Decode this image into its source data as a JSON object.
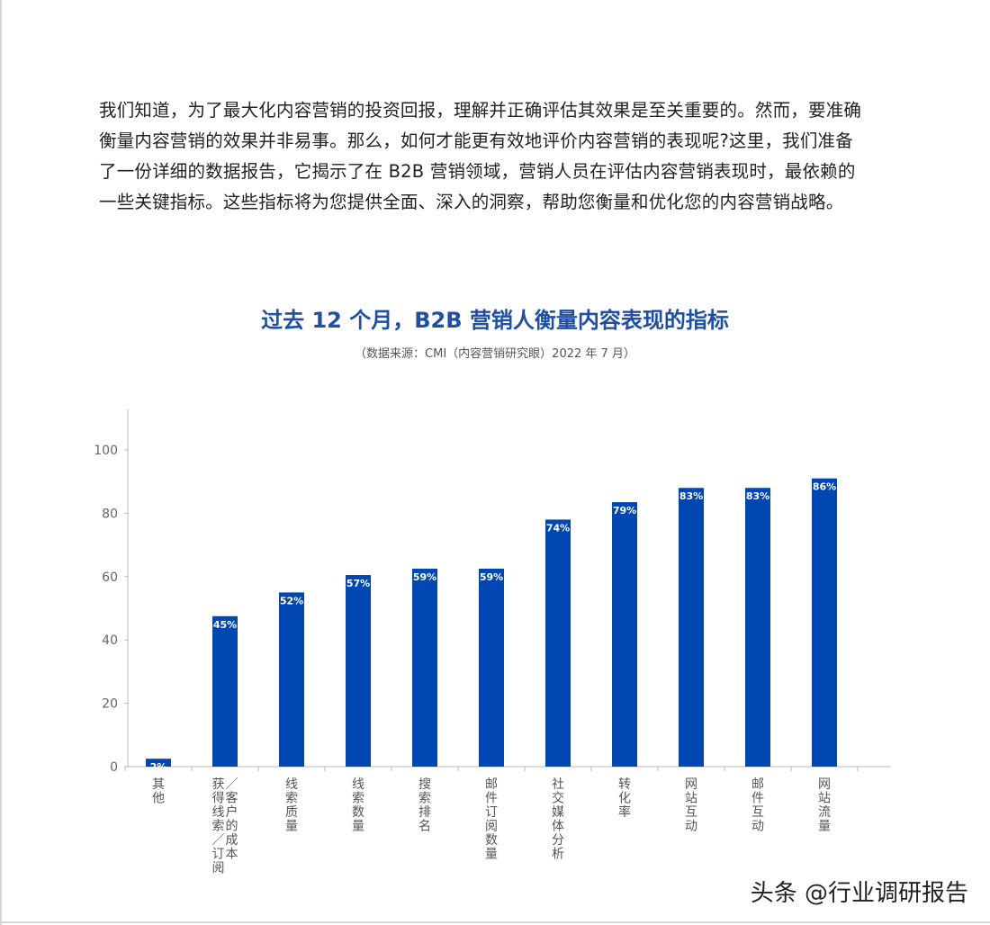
{
  "intro": {
    "lines": [
      "我们知道，为了最大化内容营销的投资回报，理解并正确评估其效果是至关重要的。然而，要准确",
      "衡量内容营销的效果并非易事。那么，如何才能更有效地评价内容营销的表现呢?这里，我们准备",
      "了一份详细的数据报告，它揭示了在  B2B  营销领域，营销人员在评估内容营销表现时，最依赖的",
      "一些关键指标。这些指标将为您提供全面、深入的洞察，帮助您衡量和优化您的内容营销战略。"
    ]
  },
  "chart_data": {
    "type": "bar",
    "title": "过去 12 个月，B2B 营销人衡量内容表现的指标",
    "subtitle": "（数据来源：CMI（内容营销研究眼）2022 年 7 月）",
    "categories": [
      "其他",
      "获得线索／订阅／客户的成本",
      "线索质量",
      "线索数量",
      "搜索排名",
      "邮件订阅数量",
      "社交媒体分析",
      "转化率",
      "网站互动",
      "邮件互动",
      "网站流量"
    ],
    "category_lines": [
      [
        "其他"
      ],
      [
        "获得线索／订阅",
        "／客户的成本"
      ],
      [
        "线索质量"
      ],
      [
        "线索数量"
      ],
      [
        "搜索排名"
      ],
      [
        "邮件订阅数量"
      ],
      [
        "社交媒体分析"
      ],
      [
        "转化率"
      ],
      [
        "网站互动"
      ],
      [
        "邮件互动"
      ],
      [
        "网站流量"
      ]
    ],
    "values": [
      2,
      45,
      52,
      57,
      59,
      59,
      74,
      79,
      83,
      83,
      86
    ],
    "bar_heights": [
      2.5,
      47.5,
      55,
      60.5,
      62.5,
      62.5,
      78,
      83.5,
      88,
      88,
      91
    ],
    "data_labels": [
      "2%",
      "45%",
      "52%",
      "57%",
      "59%",
      "59%",
      "74%",
      "79%",
      "83%",
      "83%",
      "86%"
    ],
    "y_ticks": [
      "0",
      "20",
      "40",
      "60",
      "80",
      "100"
    ],
    "ylim": [
      0,
      100
    ],
    "grid": false,
    "bar_color": "#0047b3",
    "label_color": "#ffffff"
  },
  "watermark": "头条 @行业调研报告"
}
